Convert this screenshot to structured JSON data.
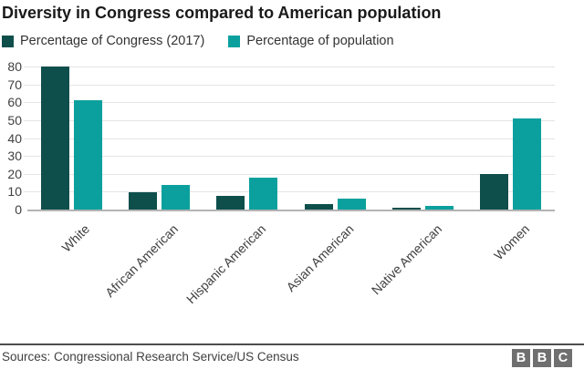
{
  "title": "Diversity in Congress compared to American population",
  "chart_data": {
    "type": "bar",
    "title": "Diversity in Congress compared to American population",
    "categories": [
      "White",
      "African American",
      "Hispanic American",
      "Asian American",
      "Native American",
      "Women"
    ],
    "series": [
      {
        "name": "Percentage of Congress (2017)",
        "color": "#0e4f4b",
        "values": [
          80,
          9.5,
          7.5,
          3,
          1,
          20
        ]
      },
      {
        "name": "Percentage of population",
        "color": "#0ba09e",
        "values": [
          61,
          14,
          18,
          6,
          2,
          51
        ]
      }
    ],
    "xlabel": "",
    "ylabel": "",
    "ylim": [
      0,
      80
    ],
    "yticks": [
      0,
      10,
      20,
      30,
      40,
      50,
      60,
      70,
      80
    ],
    "grid": "horizontal",
    "legend_position": "top-left"
  },
  "footer": {
    "sources": "Sources: Congressional Research Service/US Census",
    "bbc_letters": [
      "B",
      "B",
      "C"
    ]
  },
  "colors": {
    "congress_bar": "#0e4f4b",
    "population_bar": "#0ba09e",
    "gridline": "#e4e4e4",
    "baseline": "#b3b3b3",
    "axis_text": "#404040",
    "title_text": "#1a1a1a",
    "bbc_gray": "#6f6f6f"
  }
}
